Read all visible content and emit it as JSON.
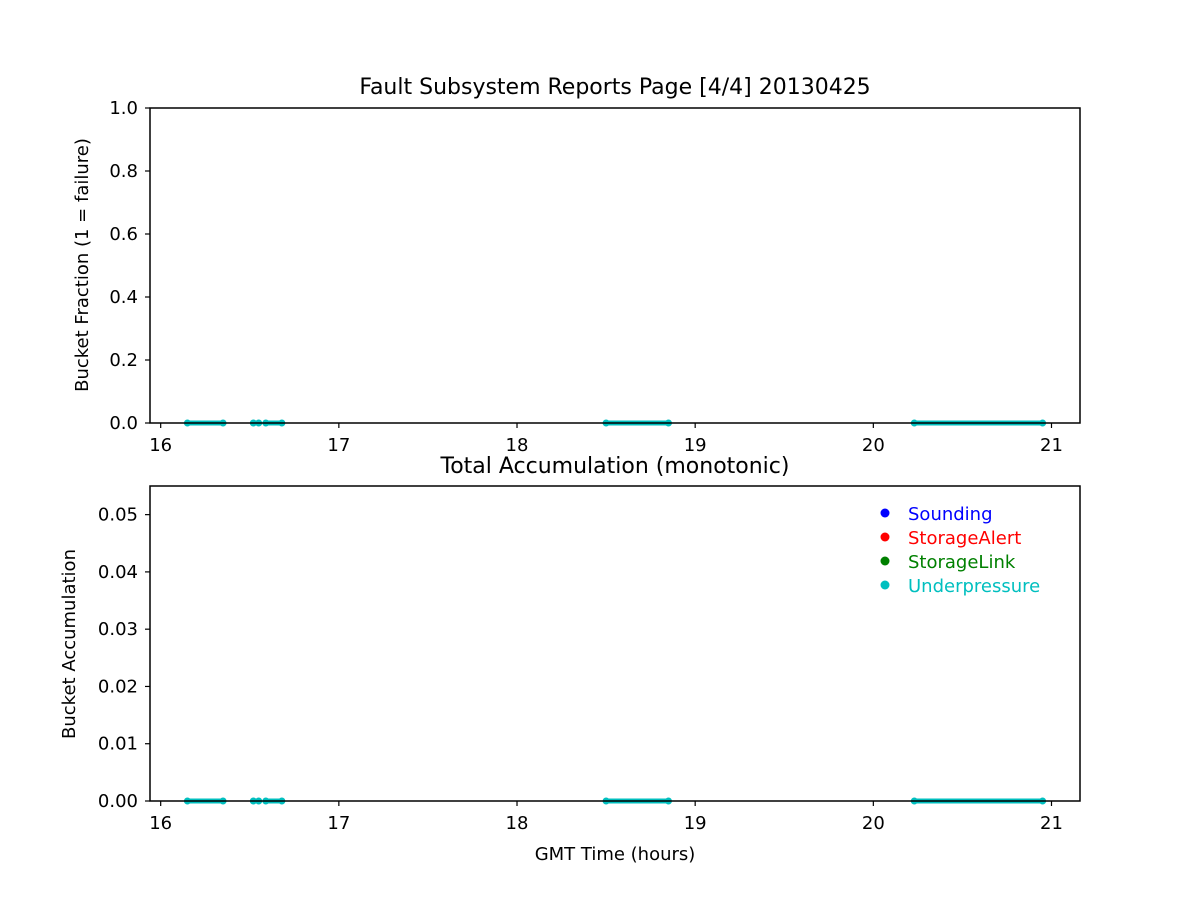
{
  "figure": {
    "title": "Fault Subsystem Reports Page [4/4] 20130425"
  },
  "chart_data": [
    {
      "type": "scatter",
      "title": "Fault Subsystem Reports Page [4/4] 20130425",
      "xlabel": "",
      "ylabel": "Bucket Fraction (1 = failure)",
      "xlim": [
        15.94,
        21.16
      ],
      "ylim": [
        0.0,
        1.0
      ],
      "x_ticks": [
        "16",
        "17",
        "18",
        "19",
        "20",
        "21"
      ],
      "y_ticks": [
        "0.0",
        "0.2",
        "0.4",
        "0.6",
        "0.8",
        "1.0"
      ],
      "grid": false,
      "legend": "none",
      "series": [
        {
          "name": "Underpressure",
          "color": "#00bfbf",
          "segments": [
            [
              16.15,
              16.35
            ],
            [
              16.52,
              16.55
            ],
            [
              16.59,
              16.68
            ],
            [
              18.5,
              18.85
            ],
            [
              20.23,
              20.95
            ]
          ],
          "y": 0.0
        }
      ]
    },
    {
      "type": "scatter",
      "title": "Total Accumulation (monotonic)",
      "xlabel": "GMT Time (hours)",
      "ylabel": "Bucket Accumulation",
      "xlim": [
        15.94,
        21.16
      ],
      "ylim": [
        0.0,
        0.055
      ],
      "x_ticks": [
        "16",
        "17",
        "18",
        "19",
        "20",
        "21"
      ],
      "y_ticks": [
        "0.00",
        "0.01",
        "0.02",
        "0.03",
        "0.04",
        "0.05"
      ],
      "grid": false,
      "legend": "top-right",
      "series": [
        {
          "name": "Sounding",
          "color": "#0000ff",
          "segments": [],
          "y": 0.0
        },
        {
          "name": "StorageAlert",
          "color": "#ff0000",
          "segments": [],
          "y": 0.0
        },
        {
          "name": "StorageLink",
          "color": "#008000",
          "segments": [],
          "y": 0.0
        },
        {
          "name": "Underpressure",
          "color": "#00bfbf",
          "segments": [
            [
              16.15,
              16.35
            ],
            [
              16.52,
              16.55
            ],
            [
              16.59,
              16.68
            ],
            [
              18.5,
              18.85
            ],
            [
              20.23,
              20.95
            ]
          ],
          "y": 0.0
        }
      ]
    }
  ]
}
